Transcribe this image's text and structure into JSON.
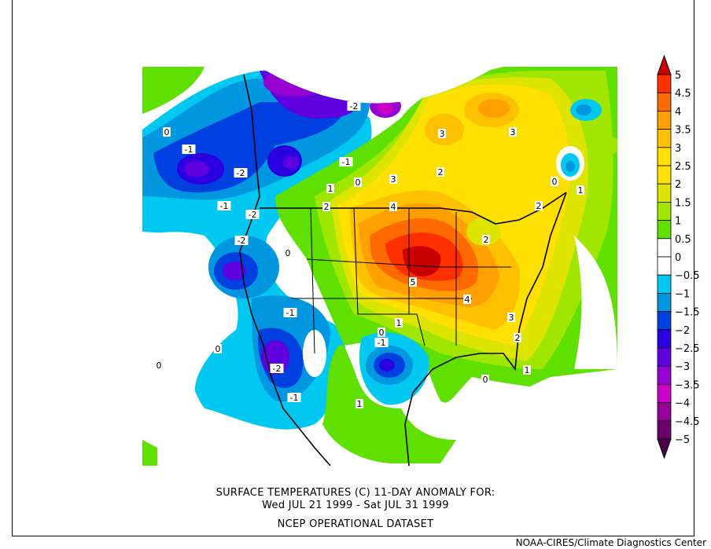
{
  "title_line1": "SURFACE TEMPERATURES (C)   11-DAY ANOMALY FOR:",
  "title_line2": "Wed JUL 21 1999 - Sat JUL 31 1999",
  "dataset": "NCEP OPERATIONAL DATASET",
  "credit": "NOAA-CIRES/Climate Diagnostics Center",
  "colorbar": {
    "ticks": [
      "5",
      "4.5",
      "4",
      "3.5",
      "3",
      "2.5",
      "2",
      "1.5",
      "1",
      "0.5",
      "0",
      "-0.5",
      "-1",
      "-1.5",
      "-2",
      "-2.5",
      "-3",
      "-3.5",
      "-4",
      "-4.5",
      "-5"
    ],
    "over_color": "#c80000",
    "under_color": "#4a004a",
    "colors": [
      "#ff3000",
      "#ff6a00",
      "#ffa000",
      "#ffc000",
      "#ffe000",
      "#ffe200",
      "#dce400",
      "#a0e600",
      "#60e000",
      "#ffffff",
      "#ffffff",
      "#00c8f0",
      "#0096e0",
      "#0040e0",
      "#2a00e0",
      "#6000e0",
      "#9600d0",
      "#c800c8",
      "#960096",
      "#6a006a"
    ]
  },
  "contour_labels": [
    "0",
    "-1",
    "-2",
    "-1",
    "-2",
    "-2",
    "-2",
    "-1",
    "0",
    "1",
    "2",
    "3",
    "2",
    "3",
    "3",
    "4",
    "2",
    "2",
    "1",
    "0",
    "5",
    "4",
    "3",
    "2",
    "1",
    "1",
    "0",
    "-1",
    "0",
    "-1",
    "-2",
    "-1",
    "1",
    "0",
    "0",
    "0"
  ]
}
